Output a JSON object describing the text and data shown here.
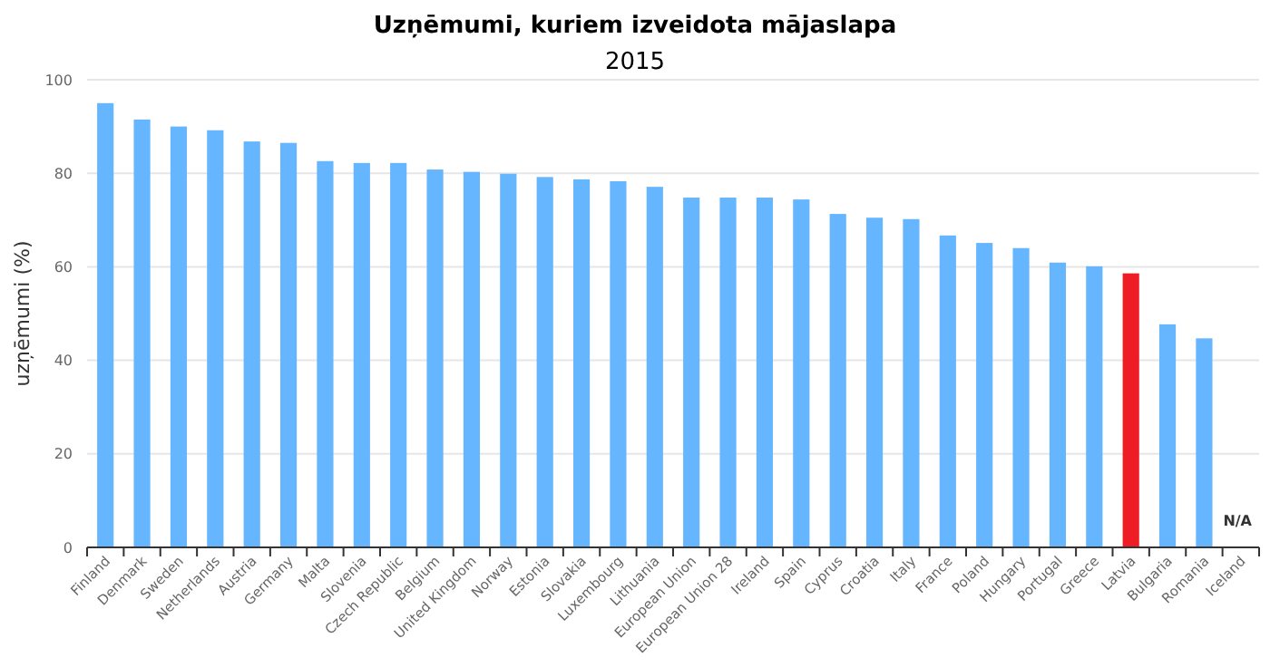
{
  "chart_data": {
    "type": "bar",
    "title": "Uzņēmumi, kuriem izveidota mājaslapa",
    "subtitle": "2015",
    "ylabel": "uzņēmumi (%)",
    "categories": [
      "Finland",
      "Denmark",
      "Sweden",
      "Netherlands",
      "Austria",
      "Germany",
      "Malta",
      "Slovenia",
      "Czech Republic",
      "Belgium",
      "United Kingdom",
      "Norway",
      "Estonia",
      "Slovakia",
      "Luxembourg",
      "Lithuania",
      "European Union",
      "European Union 28",
      "Ireland",
      "Spain",
      "Cyprus",
      "Croatia",
      "Italy",
      "France",
      "Poland",
      "Hungary",
      "Portugal",
      "Greece",
      "Latvia",
      "Bulgaria",
      "Romania",
      "Iceland"
    ],
    "values": [
      95,
      91.5,
      90,
      89.2,
      86.8,
      86.5,
      82.6,
      82.2,
      82.2,
      80.8,
      80.3,
      79.9,
      79.2,
      78.7,
      78.3,
      77.1,
      74.8,
      74.8,
      74.8,
      74.4,
      71.3,
      70.5,
      70.2,
      66.7,
      65.1,
      64,
      60.9,
      60.1,
      58.6,
      47.7,
      44.7,
      null
    ],
    "colors": [
      "#66b5ff",
      "#66b5ff",
      "#66b5ff",
      "#66b5ff",
      "#66b5ff",
      "#66b5ff",
      "#66b5ff",
      "#66b5ff",
      "#66b5ff",
      "#66b5ff",
      "#66b5ff",
      "#66b5ff",
      "#66b5ff",
      "#66b5ff",
      "#66b5ff",
      "#66b5ff",
      "#66b5ff",
      "#66b5ff",
      "#66b5ff",
      "#66b5ff",
      "#66b5ff",
      "#66b5ff",
      "#66b5ff",
      "#66b5ff",
      "#66b5ff",
      "#66b5ff",
      "#66b5ff",
      "#66b5ff",
      "#ee1c25",
      "#66b5ff",
      "#66b5ff",
      null
    ],
    "ylim": [
      0,
      100
    ],
    "yticks": [
      0,
      20,
      40,
      60,
      80,
      100
    ],
    "grid": "y",
    "annotations": [
      "N/A"
    ]
  }
}
